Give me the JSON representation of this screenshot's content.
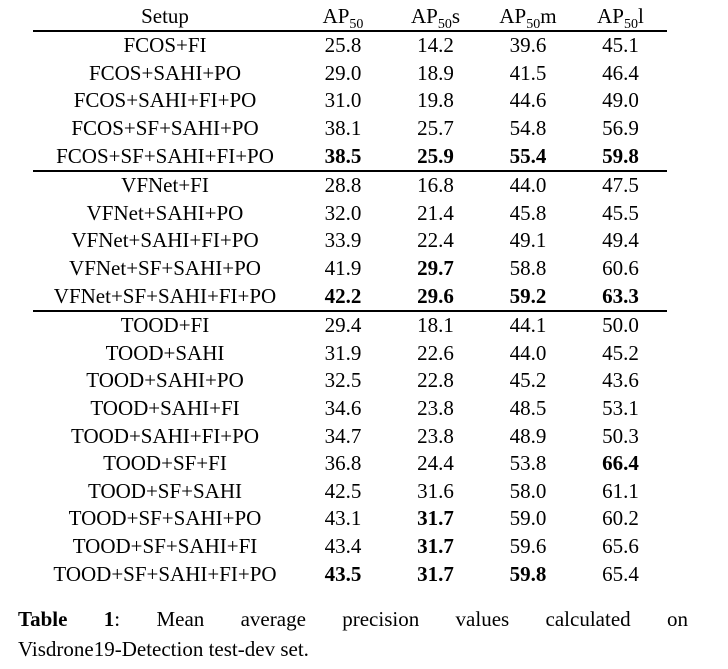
{
  "colors": {
    "text": "#000000",
    "rule": "#000000",
    "background": "#ffffff"
  },
  "table": {
    "header": {
      "setup": "Setup",
      "cols": [
        {
          "base": "AP",
          "sub": "50",
          "suffix": ""
        },
        {
          "base": "AP",
          "sub": "50",
          "suffix": "s"
        },
        {
          "base": "AP",
          "sub": "50",
          "suffix": "m"
        },
        {
          "base": "AP",
          "sub": "50",
          "suffix": "l"
        }
      ]
    },
    "sections": [
      {
        "rows": [
          {
            "setup": "FCOS+FI",
            "values": [
              "25.8",
              "14.2",
              "39.6",
              "45.1"
            ],
            "bold": [
              false,
              false,
              false,
              false
            ]
          },
          {
            "setup": "FCOS+SAHI+PO",
            "values": [
              "29.0",
              "18.9",
              "41.5",
              "46.4"
            ],
            "bold": [
              false,
              false,
              false,
              false
            ]
          },
          {
            "setup": "FCOS+SAHI+FI+PO",
            "values": [
              "31.0",
              "19.8",
              "44.6",
              "49.0"
            ],
            "bold": [
              false,
              false,
              false,
              false
            ]
          },
          {
            "setup": "FCOS+SF+SAHI+PO",
            "values": [
              "38.1",
              "25.7",
              "54.8",
              "56.9"
            ],
            "bold": [
              false,
              false,
              false,
              false
            ]
          },
          {
            "setup": "FCOS+SF+SAHI+FI+PO",
            "values": [
              "38.5",
              "25.9",
              "55.4",
              "59.8"
            ],
            "bold": [
              true,
              true,
              true,
              true
            ]
          }
        ]
      },
      {
        "rows": [
          {
            "setup": "VFNet+FI",
            "values": [
              "28.8",
              "16.8",
              "44.0",
              "47.5"
            ],
            "bold": [
              false,
              false,
              false,
              false
            ]
          },
          {
            "setup": "VFNet+SAHI+PO",
            "values": [
              "32.0",
              "21.4",
              "45.8",
              "45.5"
            ],
            "bold": [
              false,
              false,
              false,
              false
            ]
          },
          {
            "setup": "VFNet+SAHI+FI+PO",
            "values": [
              "33.9",
              "22.4",
              "49.1",
              "49.4"
            ],
            "bold": [
              false,
              false,
              false,
              false
            ]
          },
          {
            "setup": "VFNet+SF+SAHI+PO",
            "values": [
              "41.9",
              "29.7",
              "58.8",
              "60.6"
            ],
            "bold": [
              false,
              true,
              false,
              false
            ]
          },
          {
            "setup": "VFNet+SF+SAHI+FI+PO",
            "values": [
              "42.2",
              "29.6",
              "59.2",
              "63.3"
            ],
            "bold": [
              true,
              true,
              true,
              true
            ]
          }
        ]
      },
      {
        "rows": [
          {
            "setup": "TOOD+FI",
            "values": [
              "29.4",
              "18.1",
              "44.1",
              "50.0"
            ],
            "bold": [
              false,
              false,
              false,
              false
            ]
          },
          {
            "setup": "TOOD+SAHI",
            "values": [
              "31.9",
              "22.6",
              "44.0",
              "45.2"
            ],
            "bold": [
              false,
              false,
              false,
              false
            ]
          },
          {
            "setup": "TOOD+SAHI+PO",
            "values": [
              "32.5",
              "22.8",
              "45.2",
              "43.6"
            ],
            "bold": [
              false,
              false,
              false,
              false
            ]
          },
          {
            "setup": "TOOD+SAHI+FI",
            "values": [
              "34.6",
              "23.8",
              "48.5",
              "53.1"
            ],
            "bold": [
              false,
              false,
              false,
              false
            ]
          },
          {
            "setup": "TOOD+SAHI+FI+PO",
            "values": [
              "34.7",
              "23.8",
              "48.9",
              "50.3"
            ],
            "bold": [
              false,
              false,
              false,
              false
            ]
          },
          {
            "setup": "TOOD+SF+FI",
            "values": [
              "36.8",
              "24.4",
              "53.8",
              "66.4"
            ],
            "bold": [
              false,
              false,
              false,
              true
            ]
          },
          {
            "setup": "TOOD+SF+SAHI",
            "values": [
              "42.5",
              "31.6",
              "58.0",
              "61.1"
            ],
            "bold": [
              false,
              false,
              false,
              false
            ]
          },
          {
            "setup": "TOOD+SF+SAHI+PO",
            "values": [
              "43.1",
              "31.7",
              "59.0",
              "60.2"
            ],
            "bold": [
              false,
              true,
              false,
              false
            ]
          },
          {
            "setup": "TOOD+SF+SAHI+FI",
            "values": [
              "43.4",
              "31.7",
              "59.6",
              "65.6"
            ],
            "bold": [
              false,
              true,
              false,
              false
            ]
          },
          {
            "setup": "TOOD+SF+SAHI+FI+PO",
            "values": [
              "43.5",
              "31.7",
              "59.8",
              "65.4"
            ],
            "bold": [
              true,
              true,
              true,
              false
            ]
          }
        ]
      }
    ]
  },
  "caption": {
    "label": "Table 1",
    "colon": ":",
    "line1": "Mean average precision values calculated on",
    "line2": "Visdrone19-Detection test-dev set."
  }
}
